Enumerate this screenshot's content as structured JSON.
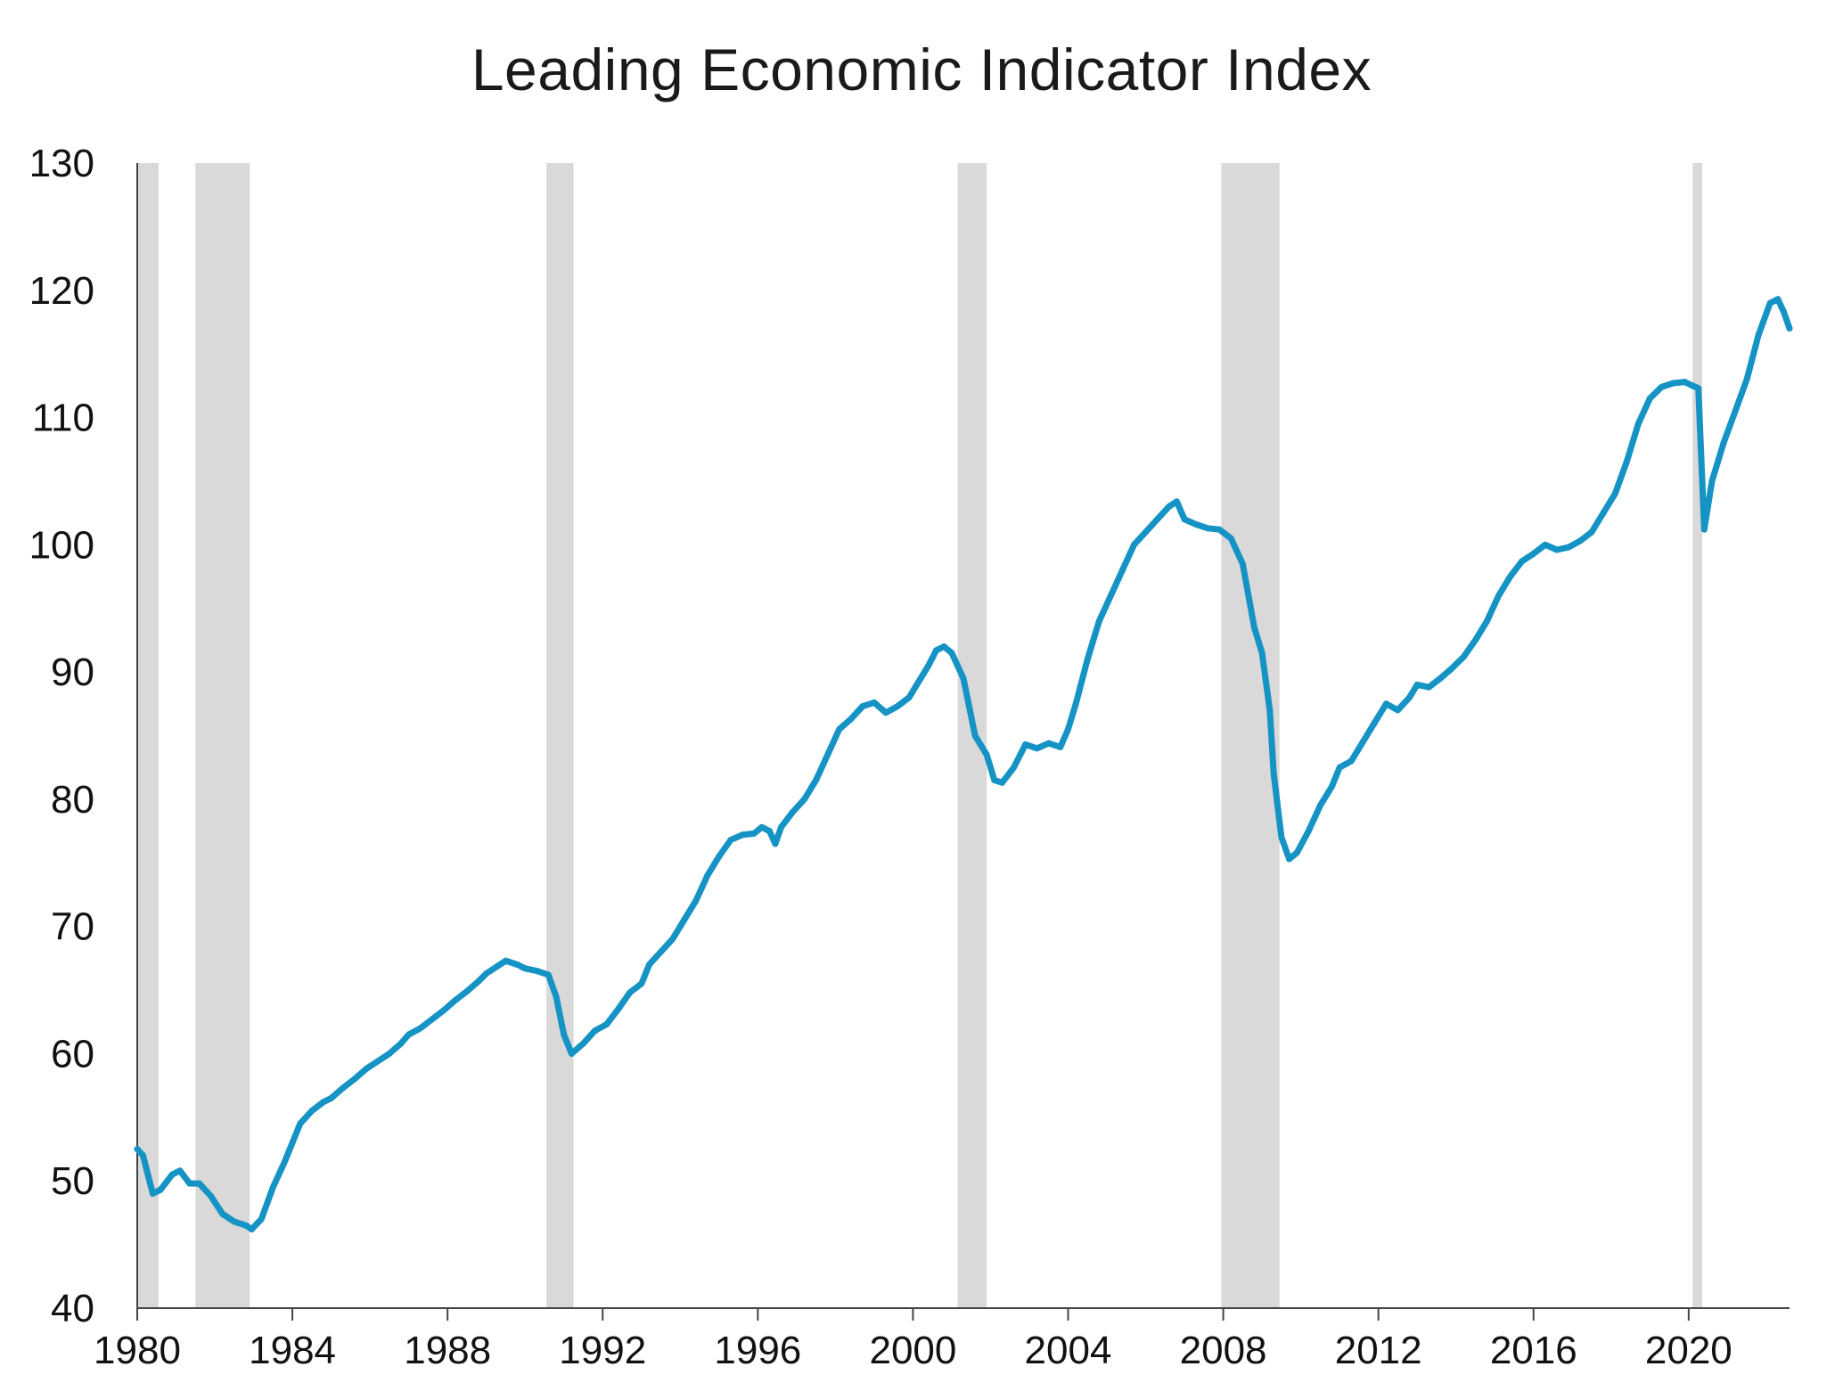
{
  "chart_data": {
    "type": "line",
    "title": "Leading Economic Indicator Index",
    "xlabel": "",
    "ylabel": "",
    "xlim": [
      1980,
      2022.6
    ],
    "ylim": [
      40,
      130
    ],
    "grid": false,
    "legend": "none",
    "x_ticks": [
      "1980",
      "1984",
      "1988",
      "1992",
      "1996",
      "2000",
      "2004",
      "2008",
      "2012",
      "2016",
      "2020"
    ],
    "y_ticks": [
      "40",
      "50",
      "60",
      "70",
      "80",
      "90",
      "100",
      "110",
      "120",
      "130"
    ],
    "colors": {
      "line": "#1593c4",
      "recession": "#d9d9d9",
      "axis": "#444444"
    },
    "recessions": [
      {
        "start": 1980.0,
        "end": 1980.55
      },
      {
        "start": 1981.5,
        "end": 1982.9
      },
      {
        "start": 1990.55,
        "end": 1991.25
      },
      {
        "start": 2001.15,
        "end": 2001.9
      },
      {
        "start": 2007.95,
        "end": 2009.45
      },
      {
        "start": 2020.1,
        "end": 2020.35
      }
    ],
    "series": [
      {
        "points": [
          [
            1980.0,
            52.5
          ],
          [
            1980.15,
            52.0
          ],
          [
            1980.4,
            49.0
          ],
          [
            1980.6,
            49.3
          ],
          [
            1980.9,
            50.5
          ],
          [
            1981.1,
            50.8
          ],
          [
            1981.35,
            49.8
          ],
          [
            1981.6,
            49.8
          ],
          [
            1981.9,
            48.8
          ],
          [
            1982.2,
            47.4
          ],
          [
            1982.5,
            46.8
          ],
          [
            1982.8,
            46.5
          ],
          [
            1982.95,
            46.2
          ],
          [
            1983.2,
            47.0
          ],
          [
            1983.5,
            49.5
          ],
          [
            1983.8,
            51.5
          ],
          [
            1984.0,
            53.0
          ],
          [
            1984.2,
            54.5
          ],
          [
            1984.5,
            55.5
          ],
          [
            1984.8,
            56.2
          ],
          [
            1985.0,
            56.5
          ],
          [
            1985.3,
            57.3
          ],
          [
            1985.6,
            58.0
          ],
          [
            1985.9,
            58.8
          ],
          [
            1986.2,
            59.4
          ],
          [
            1986.5,
            60.0
          ],
          [
            1986.8,
            60.8
          ],
          [
            1987.0,
            61.5
          ],
          [
            1987.3,
            62.0
          ],
          [
            1987.6,
            62.7
          ],
          [
            1987.9,
            63.4
          ],
          [
            1988.2,
            64.2
          ],
          [
            1988.5,
            64.9
          ],
          [
            1988.8,
            65.7
          ],
          [
            1989.0,
            66.3
          ],
          [
            1989.3,
            66.9
          ],
          [
            1989.5,
            67.3
          ],
          [
            1989.8,
            67.0
          ],
          [
            1990.0,
            66.7
          ],
          [
            1990.3,
            66.5
          ],
          [
            1990.6,
            66.2
          ],
          [
            1990.8,
            64.5
          ],
          [
            1991.0,
            61.5
          ],
          [
            1991.2,
            60.0
          ],
          [
            1991.5,
            60.8
          ],
          [
            1991.8,
            61.8
          ],
          [
            1992.1,
            62.3
          ],
          [
            1992.4,
            63.5
          ],
          [
            1992.7,
            64.8
          ],
          [
            1993.0,
            65.5
          ],
          [
            1993.2,
            67.0
          ],
          [
            1993.5,
            68.0
          ],
          [
            1993.8,
            69.0
          ],
          [
            1994.1,
            70.5
          ],
          [
            1994.4,
            72.0
          ],
          [
            1994.7,
            74.0
          ],
          [
            1995.0,
            75.5
          ],
          [
            1995.3,
            76.8
          ],
          [
            1995.6,
            77.2
          ],
          [
            1995.9,
            77.3
          ],
          [
            1996.1,
            77.8
          ],
          [
            1996.3,
            77.5
          ],
          [
            1996.45,
            76.5
          ],
          [
            1996.6,
            77.8
          ],
          [
            1996.9,
            79.0
          ],
          [
            1997.2,
            80.0
          ],
          [
            1997.5,
            81.5
          ],
          [
            1997.8,
            83.5
          ],
          [
            1998.1,
            85.5
          ],
          [
            1998.4,
            86.3
          ],
          [
            1998.7,
            87.3
          ],
          [
            1999.0,
            87.6
          ],
          [
            1999.3,
            86.8
          ],
          [
            1999.6,
            87.3
          ],
          [
            1999.9,
            88.0
          ],
          [
            2000.2,
            89.5
          ],
          [
            2000.4,
            90.5
          ],
          [
            2000.6,
            91.7
          ],
          [
            2000.8,
            92.0
          ],
          [
            2001.0,
            91.5
          ],
          [
            2001.3,
            89.5
          ],
          [
            2001.6,
            85.0
          ],
          [
            2001.9,
            83.5
          ],
          [
            2002.1,
            81.5
          ],
          [
            2002.3,
            81.3
          ],
          [
            2002.6,
            82.5
          ],
          [
            2002.9,
            84.3
          ],
          [
            2003.2,
            84.0
          ],
          [
            2003.5,
            84.4
          ],
          [
            2003.8,
            84.1
          ],
          [
            2004.0,
            85.5
          ],
          [
            2004.2,
            87.5
          ],
          [
            2004.5,
            91.0
          ],
          [
            2004.8,
            94.0
          ],
          [
            2005.1,
            96.0
          ],
          [
            2005.4,
            98.0
          ],
          [
            2005.7,
            100.0
          ],
          [
            2006.0,
            101.0
          ],
          [
            2006.3,
            102.0
          ],
          [
            2006.6,
            103.0
          ],
          [
            2006.8,
            103.4
          ],
          [
            2007.0,
            102.0
          ],
          [
            2007.3,
            101.6
          ],
          [
            2007.6,
            101.3
          ],
          [
            2007.9,
            101.2
          ],
          [
            2008.2,
            100.5
          ],
          [
            2008.5,
            98.5
          ],
          [
            2008.8,
            93.5
          ],
          [
            2009.0,
            91.5
          ],
          [
            2009.2,
            87.0
          ],
          [
            2009.3,
            82.0
          ],
          [
            2009.5,
            77.0
          ],
          [
            2009.7,
            75.3
          ],
          [
            2009.9,
            75.8
          ],
          [
            2010.2,
            77.5
          ],
          [
            2010.5,
            79.5
          ],
          [
            2010.8,
            81.0
          ],
          [
            2011.0,
            82.5
          ],
          [
            2011.3,
            83.0
          ],
          [
            2011.6,
            84.5
          ],
          [
            2011.9,
            86.0
          ],
          [
            2012.2,
            87.5
          ],
          [
            2012.5,
            87.0
          ],
          [
            2012.8,
            88.0
          ],
          [
            2013.0,
            89.0
          ],
          [
            2013.3,
            88.8
          ],
          [
            2013.6,
            89.5
          ],
          [
            2013.9,
            90.3
          ],
          [
            2014.2,
            91.2
          ],
          [
            2014.5,
            92.5
          ],
          [
            2014.8,
            94.0
          ],
          [
            2015.1,
            96.0
          ],
          [
            2015.4,
            97.5
          ],
          [
            2015.7,
            98.7
          ],
          [
            2016.0,
            99.3
          ],
          [
            2016.3,
            100.0
          ],
          [
            2016.6,
            99.6
          ],
          [
            2016.9,
            99.8
          ],
          [
            2017.2,
            100.3
          ],
          [
            2017.5,
            101.0
          ],
          [
            2017.8,
            102.5
          ],
          [
            2018.1,
            104.0
          ],
          [
            2018.4,
            106.5
          ],
          [
            2018.7,
            109.5
          ],
          [
            2019.0,
            111.5
          ],
          [
            2019.3,
            112.4
          ],
          [
            2019.6,
            112.7
          ],
          [
            2019.9,
            112.8
          ],
          [
            2020.1,
            112.5
          ],
          [
            2020.25,
            112.3
          ],
          [
            2020.4,
            101.2
          ],
          [
            2020.6,
            105.0
          ],
          [
            2020.9,
            108.0
          ],
          [
            2021.2,
            110.5
          ],
          [
            2021.5,
            113.0
          ],
          [
            2021.8,
            116.5
          ],
          [
            2022.1,
            119.0
          ],
          [
            2022.3,
            119.3
          ],
          [
            2022.45,
            118.3
          ],
          [
            2022.6,
            117.0
          ]
        ]
      }
    ]
  }
}
